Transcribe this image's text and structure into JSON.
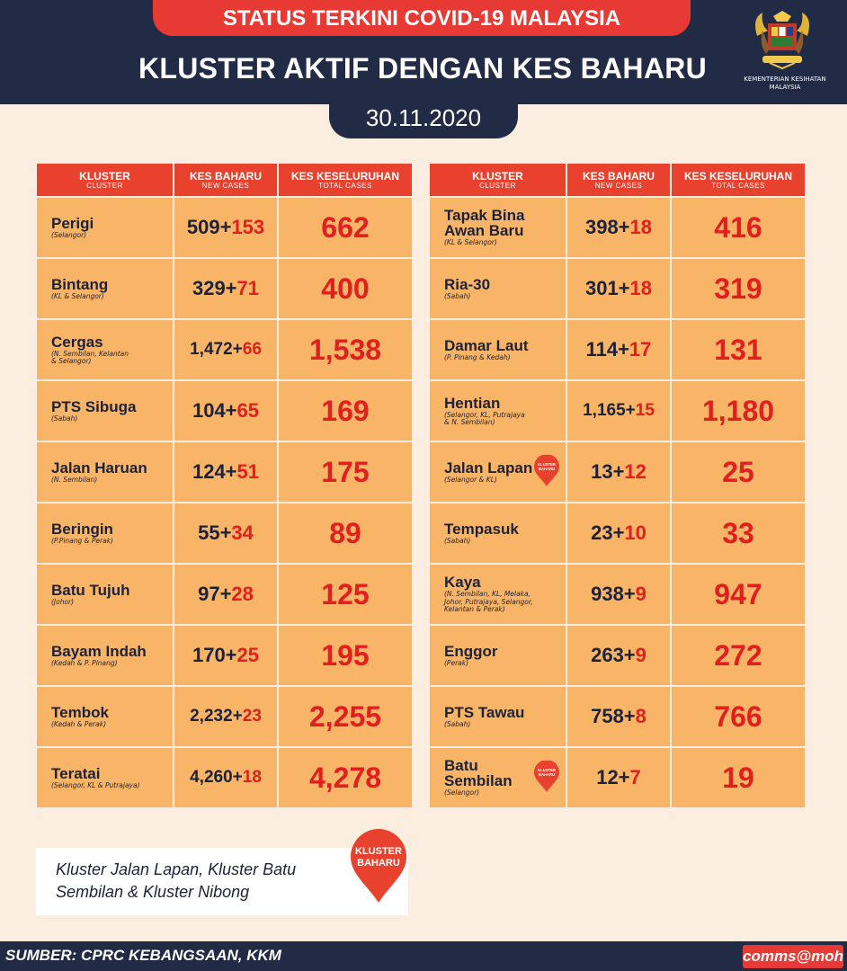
{
  "header": {
    "top_banner": "STATUS TERKINI COVID-19 MALAYSIA",
    "title": "KLUSTER AKTIF DENGAN KES BAHARU",
    "date": "30.11.2020",
    "ministry_line1": "KEMENTERIAN KESIHATAN",
    "ministry_line2": "MALAYSIA"
  },
  "table_headers": {
    "cluster": "KLUSTER",
    "cluster_en": "CLUSTER",
    "new_cases": "KES BAHARU",
    "new_cases_en": "NEW CASES",
    "total_cases": "KES KESELURUHAN",
    "total_cases_en": "TOTAL CASES"
  },
  "left_rows": [
    {
      "name": "Perigi",
      "location": "(Selangor)",
      "base": "509+",
      "add": "153",
      "total": "662"
    },
    {
      "name": "Bintang",
      "location": "(KL & Selangor)",
      "base": "329+",
      "add": "71",
      "total": "400"
    },
    {
      "name": "Cergas",
      "location": "(N. Sembilan, Kelantan\n& Selangor)",
      "base": "1,472+",
      "add": "66",
      "total": "1,538"
    },
    {
      "name": "PTS Sibuga",
      "location": "(Sabah)",
      "base": "104+",
      "add": "65",
      "total": "169"
    },
    {
      "name": "Jalan Haruan",
      "location": "(N. Sembilan)",
      "base": "124+",
      "add": "51",
      "total": "175"
    },
    {
      "name": "Beringin",
      "location": "(P.Pinang & Perak)",
      "base": "55+",
      "add": "34",
      "total": "89"
    },
    {
      "name": "Batu Tujuh",
      "location": "(Johor)",
      "base": "97+",
      "add": "28",
      "total": "125"
    },
    {
      "name": "Bayam Indah",
      "location": "(Kedah & P. Pinang)",
      "base": "170+",
      "add": "25",
      "total": "195"
    },
    {
      "name": "Tembok",
      "location": "(Kedah & Perak)",
      "base": "2,232+",
      "add": "23",
      "total": "2,255"
    },
    {
      "name": "Teratai",
      "location": "(Selangor, KL & Putrajaya)",
      "base": "4,260+",
      "add": "18",
      "total": "4,278"
    }
  ],
  "right_rows": [
    {
      "name": "Tapak Bina\nAwan Baru",
      "location": "(KL & Selangor)",
      "base": "398+",
      "add": "18",
      "total": "416"
    },
    {
      "name": "Ria-30",
      "location": "(Sabah)",
      "base": "301+",
      "add": "18",
      "total": "319"
    },
    {
      "name": "Damar Laut",
      "location": "(P. Pinang & Kedah)",
      "base": "114+",
      "add": "17",
      "total": "131"
    },
    {
      "name": "Hentian",
      "location": "(Selangor, KL, Putrajaya\n& N. Sembilan)",
      "base": "1,165+",
      "add": "15",
      "total": "1,180"
    },
    {
      "name": "Jalan Lapan",
      "location": "(Selangor & KL)",
      "base": "13+",
      "add": "12",
      "total": "25",
      "new_badge": "KLUSTER BAHARU"
    },
    {
      "name": "Tempasuk",
      "location": "(Sabah)",
      "base": "23+",
      "add": "10",
      "total": "33"
    },
    {
      "name": "Kaya",
      "location": "(N. Sembilan, KL, Melaka,\nJohor, Putrajaya, Selangor,\nKelantan & Perak)",
      "base": "938+",
      "add": "9",
      "total": "947"
    },
    {
      "name": "Enggor",
      "location": "(Perak)",
      "base": "263+",
      "add": "9",
      "total": "272"
    },
    {
      "name": "PTS Tawau",
      "location": "(Sabah)",
      "base": "758+",
      "add": "8",
      "total": "766"
    },
    {
      "name": "Batu\nSembilan",
      "location": "(Selangor)",
      "base": "12+",
      "add": "7",
      "total": "19",
      "new_badge": "KLUSTER BAHARU"
    }
  ],
  "note": {
    "text": "Kluster Jalan Lapan, Kluster Batu Sembilan & Kluster Nibong",
    "badge_line1": "KLUSTER",
    "badge_line2": "BAHARU"
  },
  "footer": {
    "source": "SUMBER: CPRC KEBANGSAAN, KKM",
    "handle": "comms@moh"
  },
  "colors": {
    "navy": "#222b45",
    "red": "#e8422f",
    "cell_orange": "#f8b467",
    "background": "#fbeee1"
  }
}
